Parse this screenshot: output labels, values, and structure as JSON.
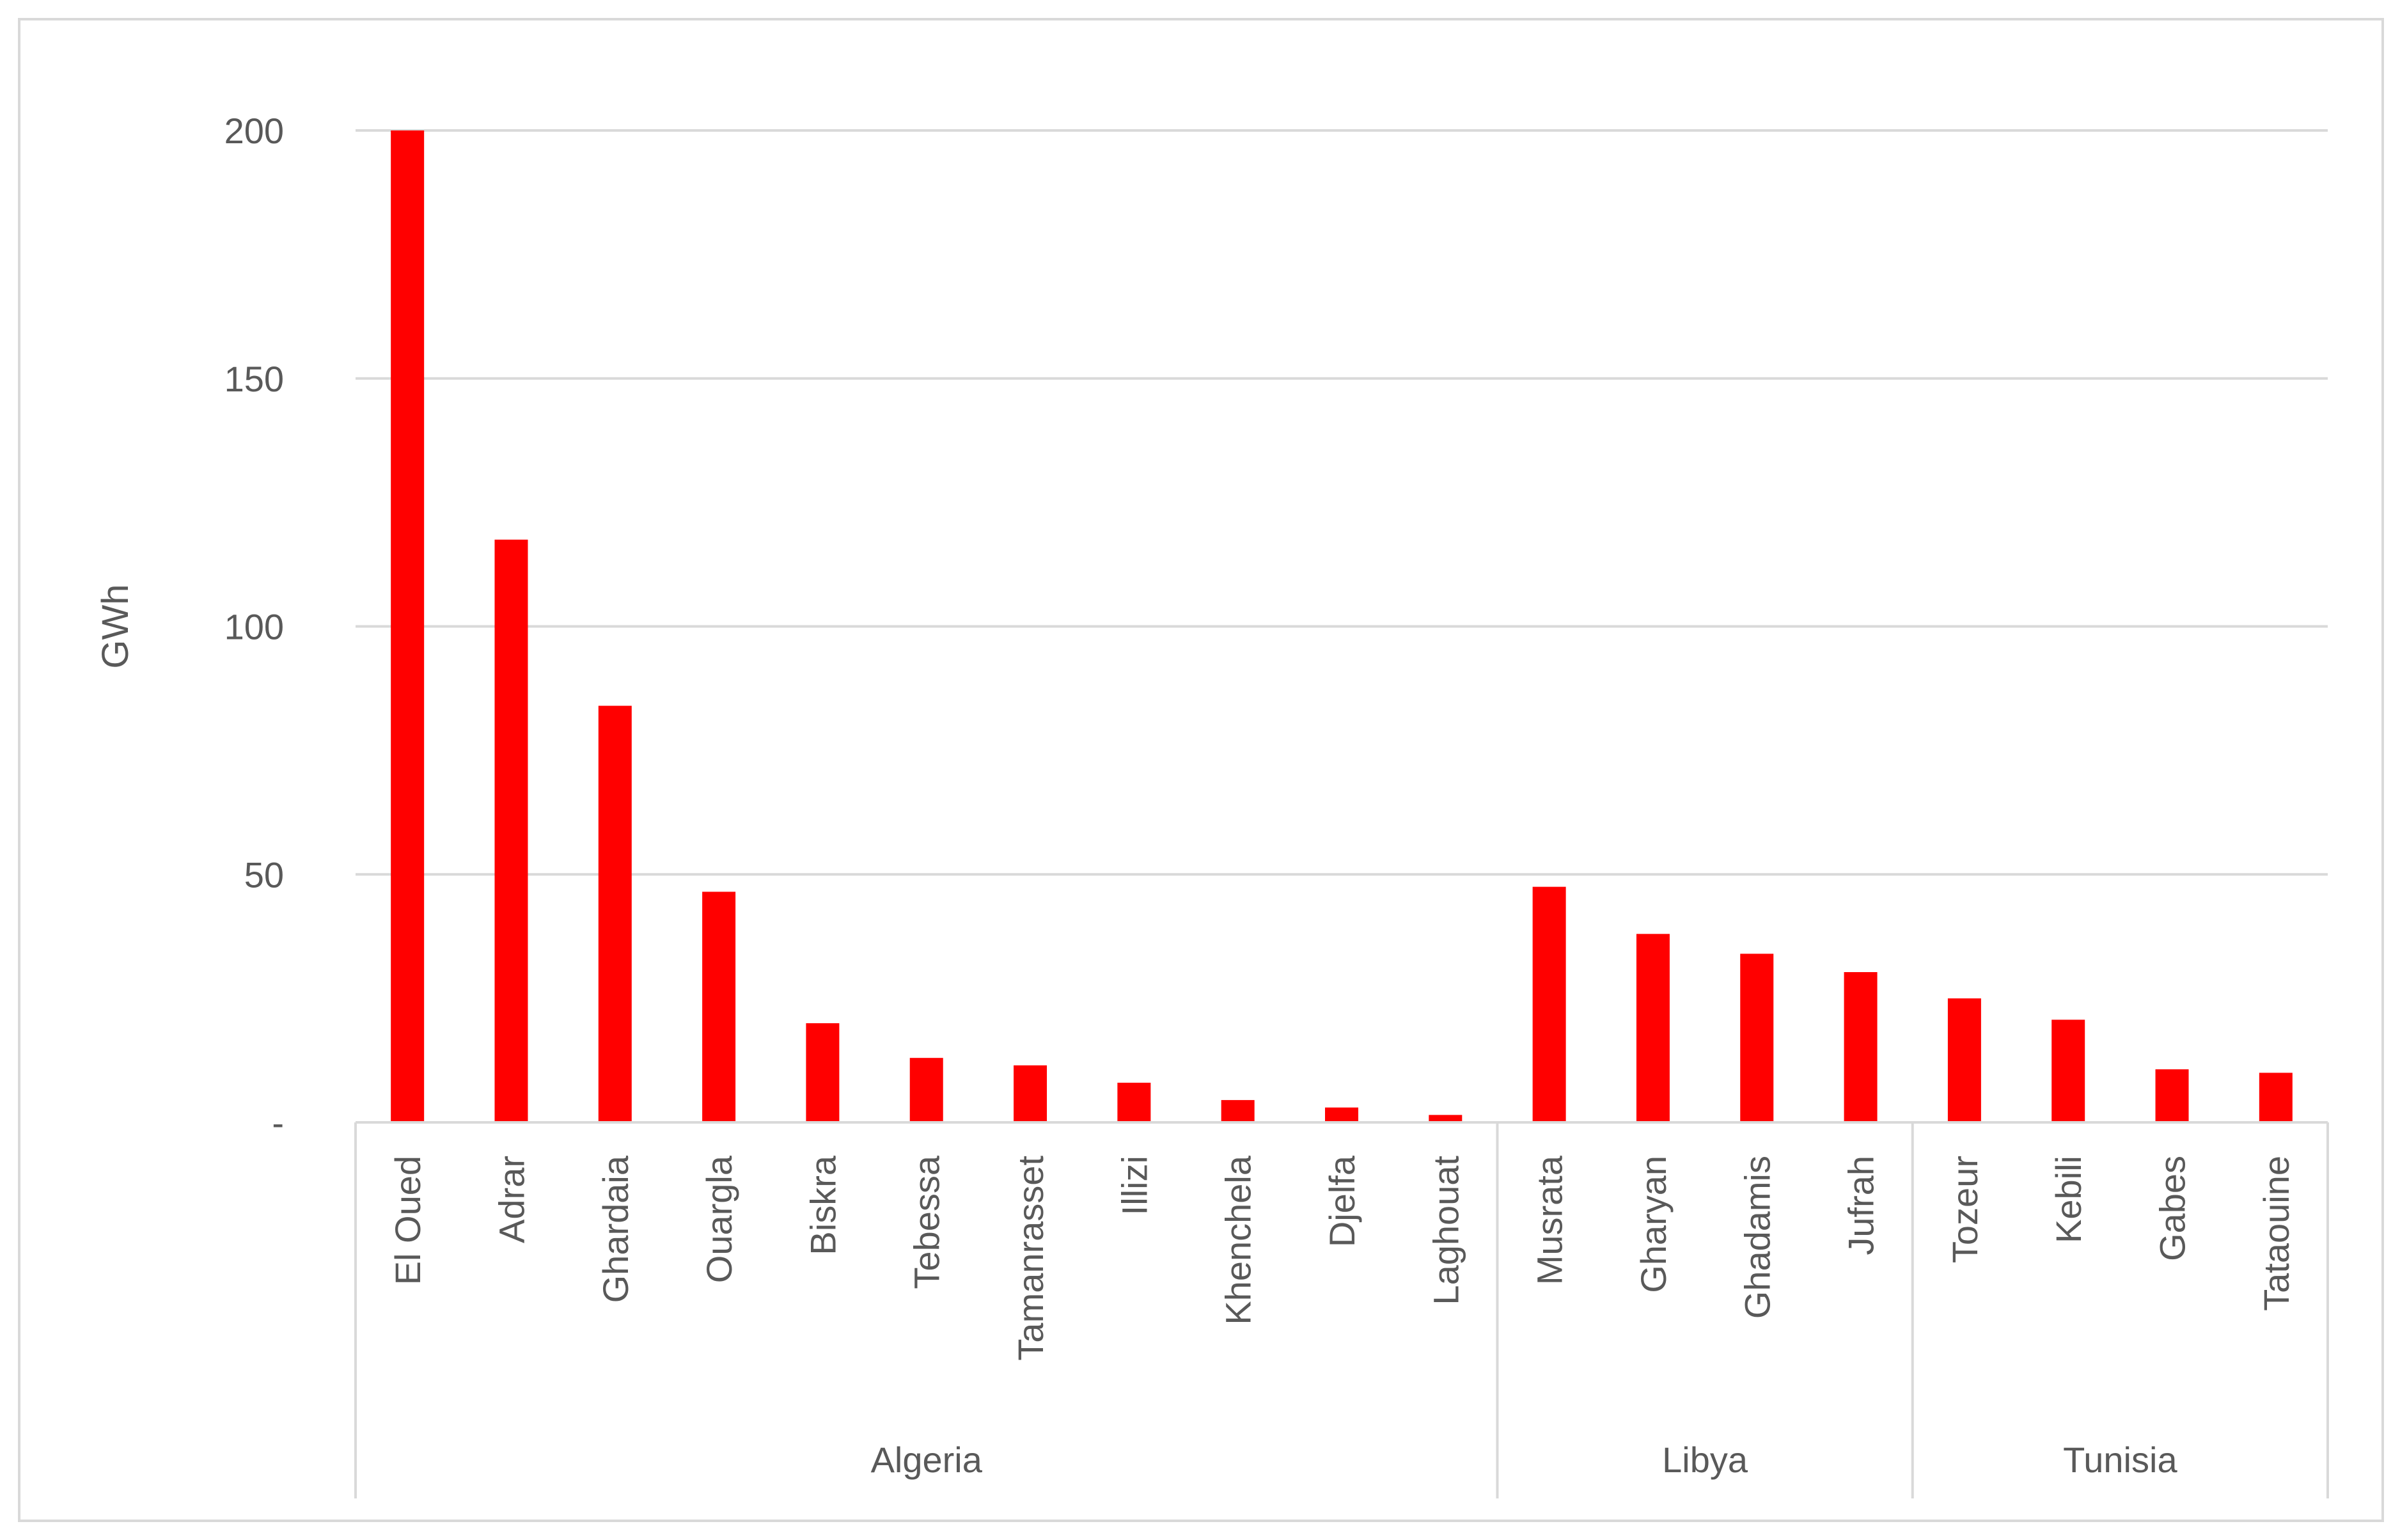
{
  "chart_data": {
    "type": "bar",
    "ylabel": "GWh",
    "xlabel": "",
    "ylim": [
      0,
      200
    ],
    "yticks": [
      {
        "value": 0,
        "label": "-"
      },
      {
        "value": 50,
        "label": "50"
      },
      {
        "value": 100,
        "label": "100"
      },
      {
        "value": 150,
        "label": "150"
      },
      {
        "value": 200,
        "label": "200"
      }
    ],
    "grid": true,
    "bar_color": "#ff0000",
    "groups": [
      {
        "name": "Algeria",
        "start": 0,
        "count": 11
      },
      {
        "name": "Libya",
        "start": 11,
        "count": 4
      },
      {
        "name": "Tunisia",
        "start": 15,
        "count": 4
      }
    ],
    "categories": [
      "El Oued",
      "Adrar",
      "Ghardaia",
      "Ouargla",
      "Biskra",
      "Tebessa",
      "Tamanrasset",
      "Illizi",
      "Khenchela",
      "Djelfa",
      "Laghouat",
      "Musrata",
      "Gharyan",
      "Ghadamis",
      "Jufrah",
      "Tozeur",
      "Kebili",
      "Gabes",
      "Tataouine"
    ],
    "values": [
      200,
      117.5,
      84,
      46.5,
      20,
      13,
      11.5,
      8,
      4.5,
      3,
      1.5,
      47.5,
      38,
      34,
      30.3,
      25,
      20.7,
      10.7,
      10
    ]
  }
}
